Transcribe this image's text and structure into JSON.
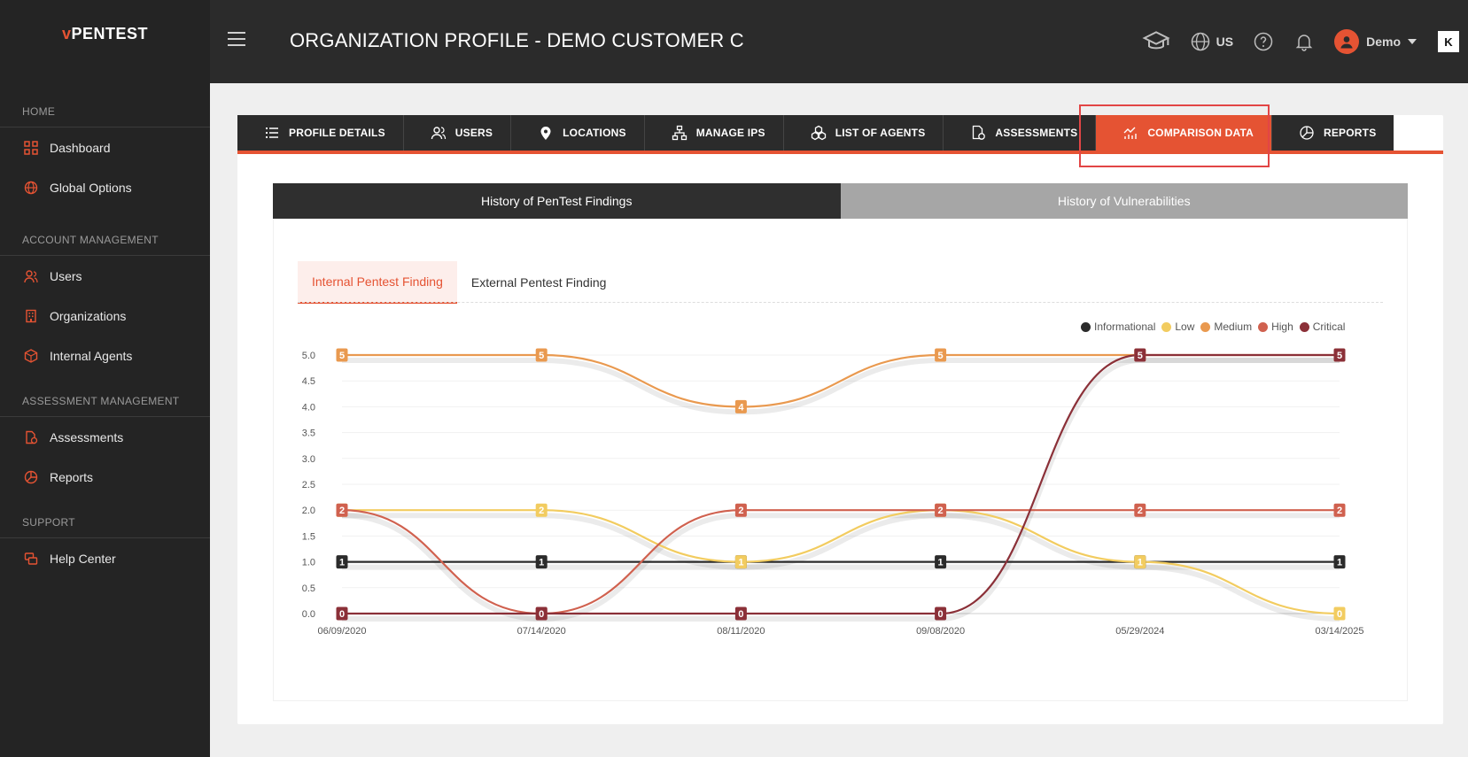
{
  "sidebar": {
    "logo_prefix": "v",
    "logo_main": "PENTEST",
    "sections": [
      {
        "heading": "HOME",
        "items": [
          {
            "label": "Dashboard",
            "icon": "dashboard-icon"
          },
          {
            "label": "Global Options",
            "icon": "globe-icon"
          }
        ]
      },
      {
        "heading": "ACCOUNT MANAGEMENT",
        "items": [
          {
            "label": "Users",
            "icon": "users-icon"
          },
          {
            "label": "Organizations",
            "icon": "building-icon"
          },
          {
            "label": "Internal Agents",
            "icon": "cube-icon"
          }
        ]
      },
      {
        "heading": "ASSESSMENT MANAGEMENT",
        "items": [
          {
            "label": "Assessments",
            "icon": "assessment-icon"
          },
          {
            "label": "Reports",
            "icon": "report-icon"
          }
        ]
      },
      {
        "heading": "SUPPORT",
        "items": [
          {
            "label": "Help Center",
            "icon": "help-center-icon"
          }
        ]
      }
    ]
  },
  "topbar": {
    "title": "ORGANIZATION PROFILE - DEMO CUSTOMER C",
    "region": "US",
    "user": "Demo",
    "brand_mark": "K"
  },
  "tabs": [
    {
      "label": "PROFILE DETAILS",
      "icon": "list-icon",
      "active": false
    },
    {
      "label": "USERS",
      "icon": "users-icon",
      "active": false
    },
    {
      "label": "LOCATIONS",
      "icon": "location-pin-icon",
      "active": false
    },
    {
      "label": "MANAGE IPS",
      "icon": "network-icon",
      "active": false
    },
    {
      "label": "LIST OF AGENTS",
      "icon": "agents-icon",
      "active": false
    },
    {
      "label": "ASSESSMENTS",
      "icon": "assessment-icon",
      "active": false
    },
    {
      "label": "COMPARISON DATA",
      "icon": "chart-icon",
      "active": true
    },
    {
      "label": "REPORTS",
      "icon": "report-icon",
      "active": false
    }
  ],
  "segments": {
    "left": "History of PenTest Findings",
    "right": "History of Vulnerabilities"
  },
  "subtabs": {
    "internal": "Internal Pentest Finding",
    "external": "External Pentest Finding"
  },
  "colors": {
    "accent": "#e55333",
    "informational": "#2b2b2b",
    "low": "#f2cc60",
    "medium": "#e9994f",
    "high": "#d0614f",
    "critical": "#8b3038"
  },
  "chart_data": {
    "type": "line",
    "x": [
      "06/09/2020",
      "07/14/2020",
      "08/11/2020",
      "09/08/2020",
      "05/29/2024",
      "03/14/2025"
    ],
    "yticks": [
      "0.0",
      "0.5",
      "1.0",
      "1.5",
      "2.0",
      "2.5",
      "3.0",
      "3.5",
      "4.0",
      "4.5",
      "5.0"
    ],
    "ylim": [
      0,
      5
    ],
    "legend_position": "top-right",
    "series": [
      {
        "name": "Informational",
        "color": "#2b2b2b",
        "values": [
          1,
          1,
          1,
          1,
          1,
          1
        ]
      },
      {
        "name": "Low",
        "color": "#f2cc60",
        "values": [
          2,
          2,
          1,
          2,
          1,
          0
        ]
      },
      {
        "name": "Medium",
        "color": "#e9994f",
        "values": [
          5,
          5,
          4,
          5,
          5,
          5
        ]
      },
      {
        "name": "High",
        "color": "#d0614f",
        "values": [
          2,
          0,
          2,
          2,
          2,
          2
        ]
      },
      {
        "name": "Critical",
        "color": "#8b3038",
        "values": [
          0,
          0,
          0,
          0,
          5,
          5
        ]
      }
    ]
  }
}
